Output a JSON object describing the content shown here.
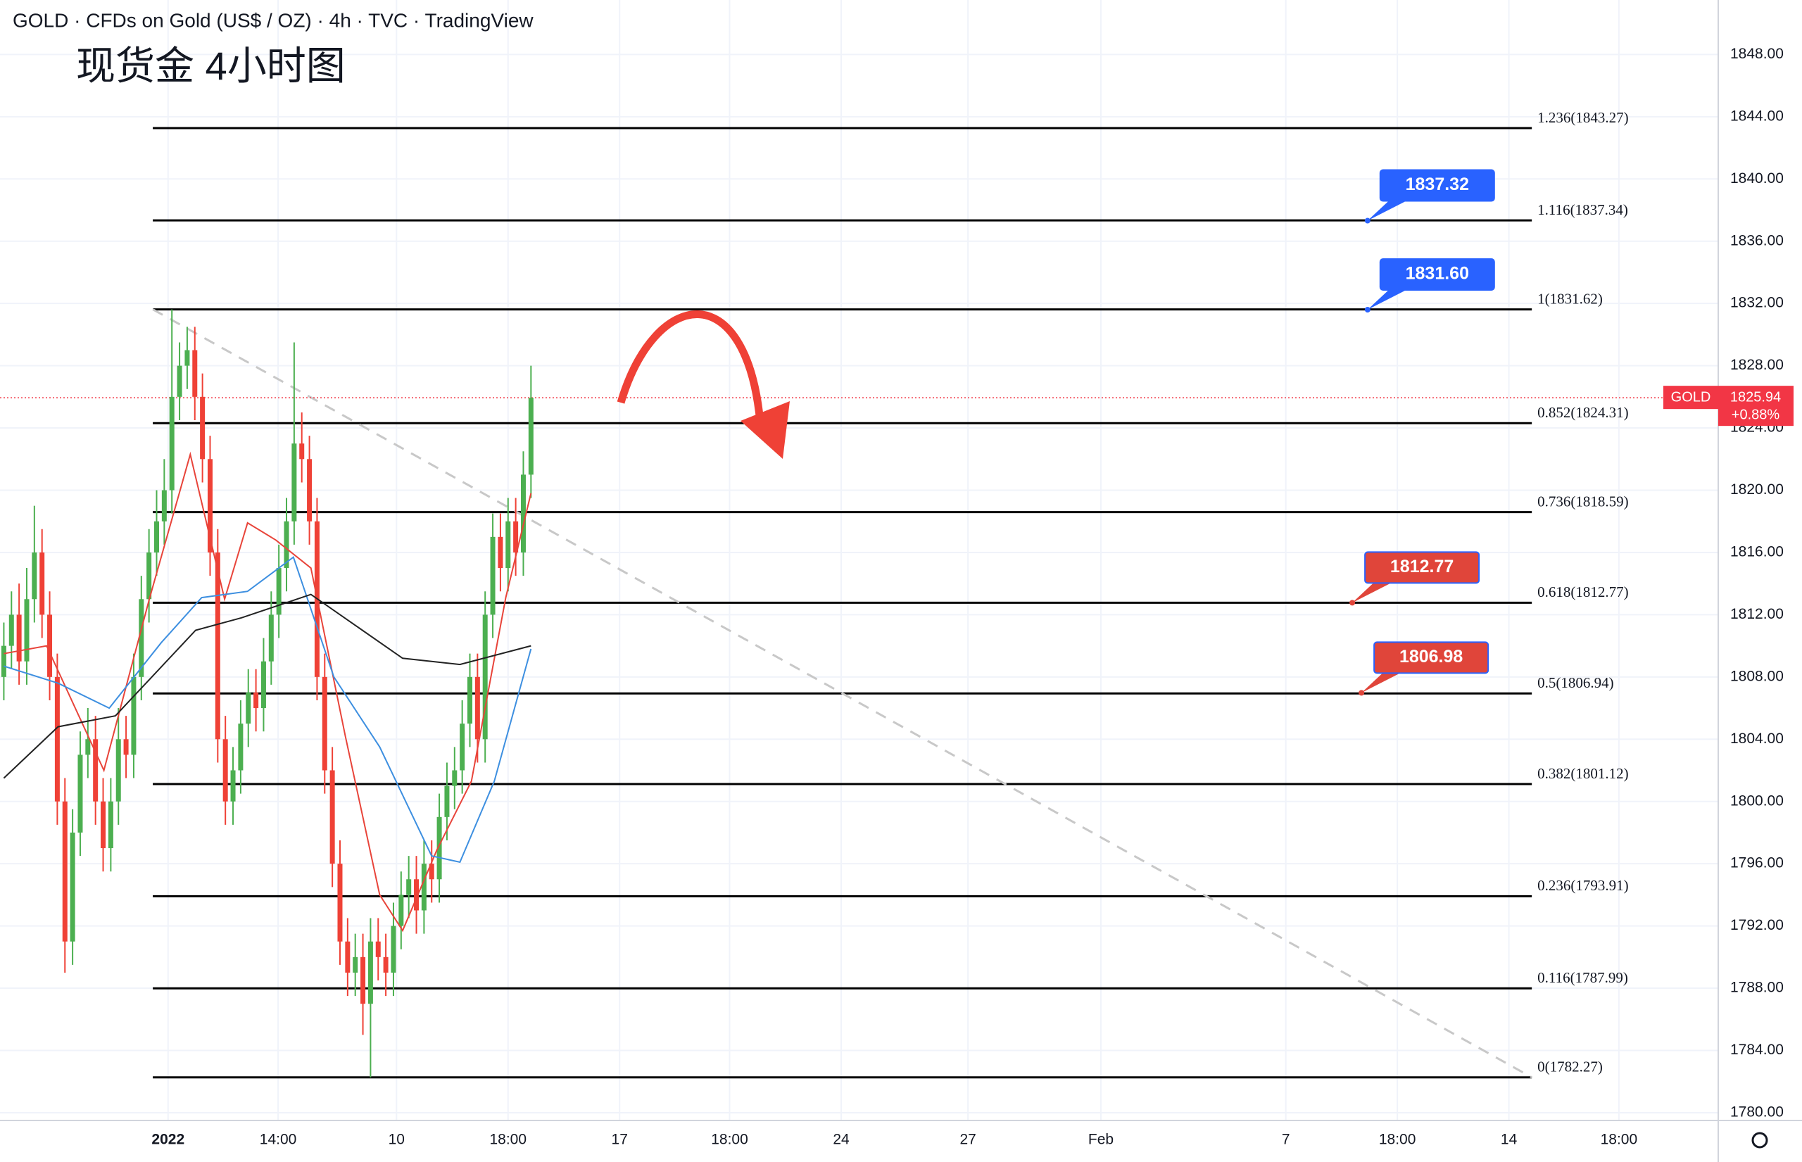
{
  "chart_data": {
    "type": "candlestick",
    "title": "GOLD · CFDs on Gold (US$ / OZ) · 4h · TVC · TradingView",
    "subtitle": "现货金 4小时图",
    "up_color": "#4caf50",
    "down_color": "#ef4136",
    "xlim": [
      -0.5,
      224.4
    ],
    "ylim": [
      1779.5,
      1851.5
    ],
    "xticks": [
      {
        "value": 21.5,
        "label": "2022"
      },
      {
        "value": 35.9,
        "label": "14:00"
      },
      {
        "value": 51.4,
        "label": "10"
      },
      {
        "value": 66,
        "label": "18:00"
      },
      {
        "value": 80.6,
        "label": "17"
      },
      {
        "value": 95,
        "label": "18:00"
      },
      {
        "value": 109.6,
        "label": "24"
      },
      {
        "value": 126.2,
        "label": "27"
      },
      {
        "value": 143.6,
        "label": "Feb"
      },
      {
        "value": 167.8,
        "label": "7"
      },
      {
        "value": 182.4,
        "label": "18:00"
      },
      {
        "value": 197,
        "label": "14"
      },
      {
        "value": 211.4,
        "label": "18:00"
      }
    ],
    "yticks": [
      {
        "value": 1780,
        "label": "1780.00"
      },
      {
        "value": 1784,
        "label": "1784.00"
      },
      {
        "value": 1788,
        "label": "1788.00"
      },
      {
        "value": 1792,
        "label": "1792.00"
      },
      {
        "value": 1796,
        "label": "1796.00"
      },
      {
        "value": 1800,
        "label": "1800.00"
      },
      {
        "value": 1804,
        "label": "1804.00"
      },
      {
        "value": 1808,
        "label": "1808.00"
      },
      {
        "value": 1812,
        "label": "1812.00"
      },
      {
        "value": 1816,
        "label": "1816.00"
      },
      {
        "value": 1820,
        "label": "1820.00"
      },
      {
        "value": 1824,
        "label": "1824.00"
      },
      {
        "value": 1828,
        "label": "1828.00"
      },
      {
        "value": 1832,
        "label": "1832.00"
      },
      {
        "value": 1836,
        "label": "1836.00"
      },
      {
        "value": 1840,
        "label": "1840.00"
      },
      {
        "value": 1844,
        "label": "1844.00"
      },
      {
        "value": 1848,
        "label": "1848.00"
      }
    ],
    "x": [
      0,
      1,
      2,
      3,
      4,
      5,
      6,
      7,
      8,
      9,
      10,
      11,
      12,
      13,
      14,
      15,
      16,
      17,
      18,
      19,
      20,
      21,
      22,
      23,
      24,
      25,
      26,
      27,
      28,
      29,
      30,
      31,
      32,
      33,
      34,
      35,
      36,
      37,
      38,
      39,
      40,
      41,
      42,
      43,
      44,
      45,
      46,
      47,
      48,
      49,
      50,
      51,
      52,
      53,
      54,
      55,
      56,
      57,
      58,
      59,
      60,
      61,
      62,
      63,
      64,
      65,
      66,
      67,
      68,
      69
    ],
    "open": [
      1808,
      1810,
      1812,
      1809,
      1813,
      1816,
      1812,
      1808,
      1800,
      1791,
      1798,
      1803,
      1804,
      1800,
      1797,
      1800,
      1804,
      1803,
      1808,
      1813,
      1816,
      1818,
      1820,
      1826,
      1828,
      1829,
      1826,
      1822,
      1816,
      1804,
      1800,
      1802,
      1805,
      1807,
      1806,
      1809,
      1812,
      1815,
      1818,
      1823,
      1822,
      1818,
      1808,
      1802,
      1796,
      1791,
      1789,
      1790,
      1787,
      1791,
      1790,
      1789,
      1792,
      1794,
      1795,
      1793,
      1796,
      1795,
      1799,
      1801,
      1802,
      1805,
      1808,
      1804,
      1812,
      1817,
      1815,
      1818,
      1816,
      1821
    ],
    "high": [
      1811.5,
      1813.5,
      1814,
      1815,
      1819,
      1817.5,
      1813.5,
      1809.5,
      1801.5,
      1799.5,
      1804.5,
      1806,
      1805.5,
      1801.5,
      1801.5,
      1806,
      1805.5,
      1809.5,
      1814.5,
      1817.5,
      1820,
      1822,
      1831.62,
      1829.5,
      1830.5,
      1830.5,
      1827.5,
      1823.5,
      1817.5,
      1805.5,
      1803.5,
      1806.5,
      1808.5,
      1808.5,
      1810.5,
      1813.5,
      1816.5,
      1819.5,
      1829.5,
      1825,
      1823.5,
      1819.5,
      1809.5,
      1803.5,
      1797.5,
      1792.5,
      1791.5,
      1791.5,
      1792.5,
      1792.5,
      1791.5,
      1793.5,
      1795.5,
      1796.5,
      1796.5,
      1797.5,
      1797.5,
      1800.5,
      1802.5,
      1803.5,
      1806.5,
      1809.5,
      1809.5,
      1813.5,
      1818.5,
      1818.5,
      1819.5,
      1819.5,
      1822.5,
      1828
    ],
    "low": [
      1806.5,
      1808.5,
      1807.5,
      1807.5,
      1811.5,
      1810.5,
      1806.5,
      1798.5,
      1789,
      1789.5,
      1796.5,
      1801.5,
      1798.5,
      1795.5,
      1795.5,
      1798.5,
      1801.5,
      1801.5,
      1806.5,
      1811.5,
      1814.5,
      1816.5,
      1818.5,
      1824.5,
      1826.5,
      1824.5,
      1820.5,
      1814.5,
      1802.5,
      1798.5,
      1798.5,
      1800.5,
      1803.5,
      1804.5,
      1804.5,
      1807.5,
      1810.5,
      1813.5,
      1816.5,
      1820.5,
      1816.5,
      1806.5,
      1800.5,
      1794.5,
      1789.5,
      1787.5,
      1787.5,
      1785,
      1782.27,
      1788.5,
      1787.5,
      1787.5,
      1790.5,
      1792.5,
      1791.5,
      1791.5,
      1793.5,
      1793.5,
      1797.5,
      1799.5,
      1800.5,
      1803.5,
      1802.5,
      1802.5,
      1810.5,
      1813.5,
      1813.5,
      1814.5,
      1814.5,
      1819.5
    ],
    "close": [
      1810,
      1812,
      1809,
      1813,
      1816,
      1812,
      1808,
      1800,
      1791,
      1798,
      1803,
      1804,
      1800,
      1797,
      1800,
      1804,
      1803,
      1808,
      1813,
      1816,
      1818,
      1820,
      1826,
      1828,
      1829,
      1826,
      1822,
      1816,
      1804,
      1800,
      1802,
      1805,
      1807,
      1806,
      1809,
      1812,
      1815,
      1818,
      1823,
      1822,
      1818,
      1808,
      1802,
      1796,
      1791,
      1789,
      1790,
      1787,
      1791,
      1790,
      1789,
      1792,
      1794,
      1795,
      1793,
      1796,
      1795,
      1799,
      1801,
      1802,
      1805,
      1808,
      1804,
      1812,
      1817,
      1815,
      1818,
      1816,
      1821,
      1825.94
    ],
    "indicators": [
      {
        "color": "#e8443a",
        "x": [
          0,
          5.6,
          13.1,
          19.1,
          24.4,
          28.9,
          31.9,
          35.6,
          40.2,
          44.7,
          49.2,
          52.2,
          56.7,
          61.2,
          65.7,
          69
        ],
        "values": [
          1809.5,
          1810,
          1802,
          1813.1,
          1822.3,
          1813,
          1817.9,
          1816.8,
          1815,
          1804.2,
          1794,
          1791.7,
          1796.9,
          1801.3,
          1813.1,
          1819.8
        ]
      },
      {
        "color": "#3d8fe0",
        "x": [
          0,
          7.1,
          13.8,
          20.6,
          25.9,
          31.9,
          37.9,
          43.2,
          49.2,
          56,
          59.7,
          64.2,
          69
        ],
        "values": [
          1808.7,
          1807.6,
          1806,
          1810.2,
          1813.1,
          1813.5,
          1815.7,
          1808,
          1803.5,
          1796.5,
          1796.1,
          1801.3,
          1809.8
        ]
      },
      {
        "color": "#222222",
        "x": [
          0,
          7.1,
          14.6,
          25.1,
          31.1,
          40.2,
          52.2,
          59.7,
          69
        ],
        "values": [
          1801.5,
          1804.8,
          1805.5,
          1811,
          1811.8,
          1813.3,
          1809.2,
          1808.8,
          1810
        ]
      }
    ],
    "trendline": {
      "color": "#c8c8c8",
      "x": [
        19.5,
        200
      ],
      "y": [
        1831.62,
        1782.27
      ]
    },
    "fib": {
      "x": [
        19.5,
        200
      ],
      "levels": [
        {
          "label": "1.236(1843.27)",
          "price": 1843.27
        },
        {
          "label": "1.116(1837.34)",
          "price": 1837.34
        },
        {
          "label": "1(1831.62)",
          "price": 1831.62
        },
        {
          "label": "0.852(1824.31)",
          "price": 1824.31
        },
        {
          "label": "0.736(1818.59)",
          "price": 1818.59
        },
        {
          "label": "0.618(1812.77)",
          "price": 1812.77
        },
        {
          "label": "0.5(1806.94)",
          "price": 1806.94
        },
        {
          "label": "0.382(1801.12)",
          "price": 1801.12
        },
        {
          "label": "0.236(1793.91)",
          "price": 1793.91
        },
        {
          "label": "0.116(1787.99)",
          "price": 1787.99
        },
        {
          "label": "0(1782.27)",
          "price": 1782.27
        }
      ]
    },
    "callouts": [
      {
        "value": 1837.32,
        "label": "1837.32",
        "x": 178.5,
        "color": "#2962ff"
      },
      {
        "value": 1831.6,
        "label": "1831.60",
        "x": 178.5,
        "color": "#2962ff"
      },
      {
        "value": 1812.77,
        "label": "1812.77",
        "x": 176.5,
        "color": "#e0453a"
      },
      {
        "value": 1806.98,
        "label": "1806.98",
        "x": 177.7,
        "color": "#e0453a"
      }
    ],
    "last_price": {
      "symbol": "GOLD",
      "value": 1825.94,
      "change": "+0.88%",
      "color": "#f23645"
    }
  }
}
